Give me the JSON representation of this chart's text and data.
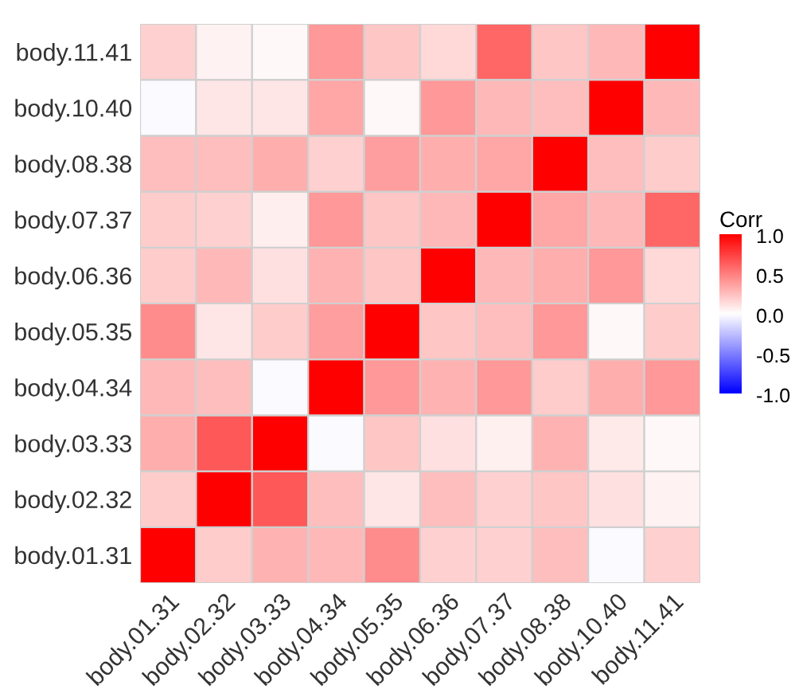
{
  "chart_data": {
    "type": "heatmap",
    "legend_title": "Corr",
    "categories": [
      "body.01.31",
      "body.02.32",
      "body.03.33",
      "body.04.34",
      "body.05.35",
      "body.06.36",
      "body.07.37",
      "body.08.38",
      "body.10.40",
      "body.11.41"
    ],
    "y_categories": [
      "body.11.41",
      "body.10.40",
      "body.08.38",
      "body.07.37",
      "body.06.36",
      "body.05.35",
      "body.04.34",
      "body.03.33",
      "body.02.32",
      "body.01.31"
    ],
    "cells": [
      [
        0.18,
        0.05,
        0.03,
        0.4,
        0.22,
        0.15,
        0.6,
        0.22,
        0.28,
        1
      ],
      [
        -0.02,
        0.1,
        0.1,
        0.35,
        0.03,
        0.4,
        0.28,
        0.25,
        1,
        0.28
      ],
      [
        0.25,
        0.25,
        0.32,
        0.18,
        0.38,
        0.32,
        0.35,
        1,
        0.25,
        0.2
      ],
      [
        0.2,
        0.18,
        0.07,
        0.4,
        0.22,
        0.28,
        1,
        0.35,
        0.28,
        0.6
      ],
      [
        0.2,
        0.28,
        0.12,
        0.3,
        0.22,
        1,
        0.28,
        0.32,
        0.4,
        0.15
      ],
      [
        0.45,
        0.1,
        0.2,
        0.38,
        1,
        0.22,
        0.25,
        0.4,
        0.03,
        0.2
      ],
      [
        0.28,
        0.25,
        -0.02,
        1,
        0.4,
        0.3,
        0.4,
        0.2,
        0.32,
        0.4
      ],
      [
        0.32,
        0.65,
        1,
        -0.02,
        0.22,
        0.12,
        0.06,
        0.3,
        0.08,
        0.03
      ],
      [
        0.2,
        1,
        0.65,
        0.25,
        0.1,
        0.25,
        0.18,
        0.22,
        0.12,
        0.05
      ],
      [
        1,
        0.2,
        0.3,
        0.28,
        0.45,
        0.18,
        0.18,
        0.25,
        -0.02,
        0.18
      ]
    ],
    "clim": [
      -1,
      1
    ],
    "cticks": [
      {
        "value": -1,
        "label": "-1.0"
      },
      {
        "value": -0.5,
        "label": "-0.5"
      },
      {
        "value": 0,
        "label": "0.0"
      },
      {
        "value": 0.5,
        "label": "0.5"
      },
      {
        "value": 1,
        "label": "1.0"
      }
    ]
  }
}
